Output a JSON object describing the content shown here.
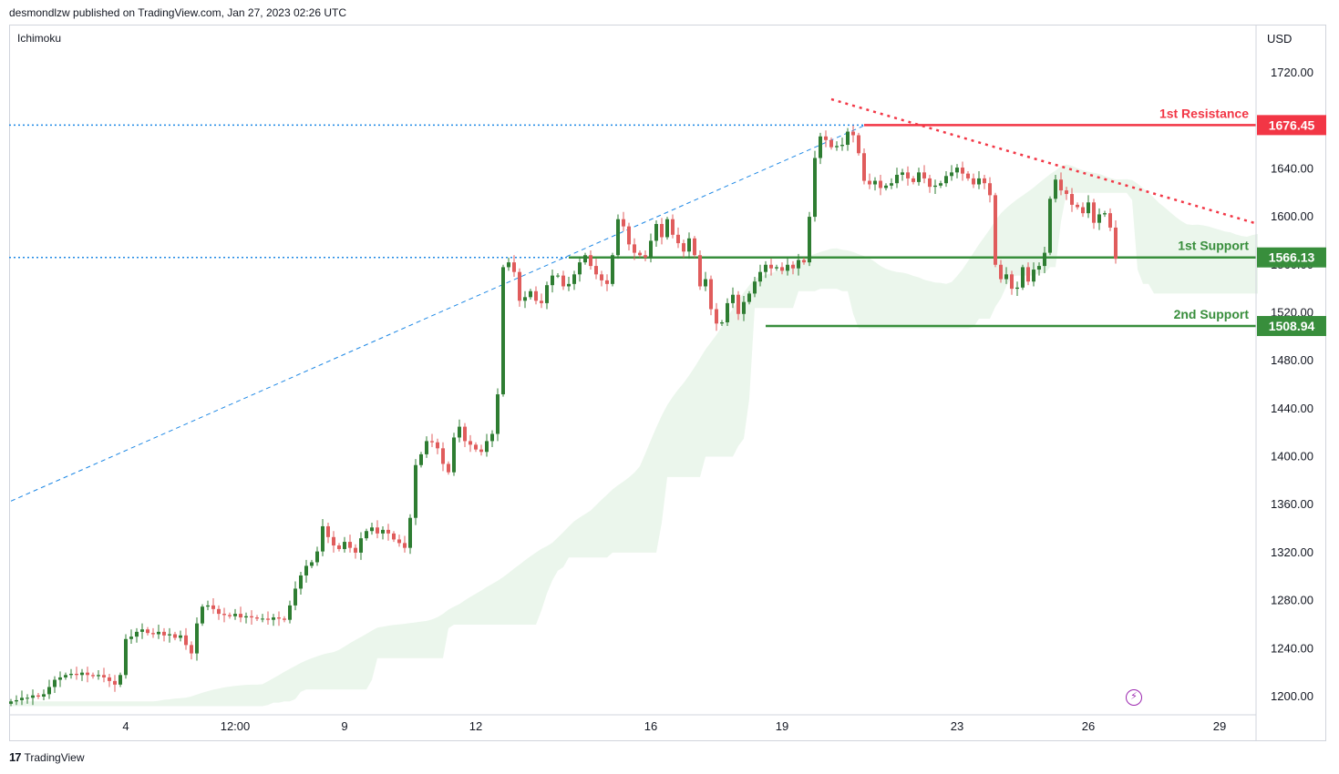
{
  "header": {
    "publisher_line": "desmondlzw published on TradingView.com, Jan 27, 2023 02:26 UTC"
  },
  "indicator_label": "Ichimoku",
  "currency": "USD",
  "footer": {
    "brand": "TradingView",
    "logo_text": "17"
  },
  "colors": {
    "bull": "#2e7d32",
    "bear": "#e05c5c",
    "resistance": "#f23645",
    "support": "#388e3c",
    "trend": "#1e88e5",
    "cloud_bull": "#e8f5e9",
    "cloud_bear": "#ffebee"
  },
  "chart_data": {
    "type": "candlestick",
    "title": "",
    "y_axis": {
      "ticks": [
        1200,
        1240,
        1280,
        1320,
        1360,
        1400,
        1440,
        1480,
        1520,
        1560,
        1600,
        1640,
        1680,
        1720
      ],
      "ylim": [
        1192,
        1735
      ],
      "position": "right"
    },
    "x_axis": {
      "tick_labels": [
        "4",
        "12:00",
        "9",
        "12",
        "16",
        "19",
        "23",
        "26",
        "29"
      ],
      "tick_index": [
        21,
        41,
        61,
        85,
        117,
        141,
        173,
        197,
        221
      ]
    },
    "levels": [
      {
        "name": "1st Resistance",
        "value": 1676.45,
        "color": "#f23645"
      },
      {
        "name": "1st Support",
        "value": 1566.13,
        "color": "#388e3c"
      },
      {
        "name": "2nd Support",
        "value": 1508.94,
        "color": "#388e3c"
      }
    ],
    "trendline_down": {
      "from": [
        150,
        1698
      ],
      "to": [
        228,
        1594
      ]
    },
    "trendline_up": {
      "from": [
        0,
        1363
      ],
      "to": [
        156,
        1676
      ]
    },
    "closes": [
      1196,
      1197,
      1199,
      1199,
      1201,
      1200,
      1202,
      1208,
      1214,
      1216,
      1218,
      1219,
      1218,
      1220,
      1218,
      1217,
      1218,
      1216,
      1213,
      1210,
      1218,
      1248,
      1250,
      1254,
      1256,
      1253,
      1252,
      1254,
      1251,
      1252,
      1249,
      1251,
      1243,
      1236,
      1261,
      1275,
      1276,
      1273,
      1269,
      1268,
      1267,
      1269,
      1266,
      1267,
      1266,
      1265,
      1265,
      1264,
      1266,
      1265,
      1264,
      1276,
      1290,
      1301,
      1309,
      1312,
      1321,
      1342,
      1333,
      1326,
      1323,
      1329,
      1324,
      1320,
      1332,
      1338,
      1341,
      1336,
      1339,
      1336,
      1331,
      1328,
      1324,
      1349,
      1393,
      1402,
      1413,
      1412,
      1407,
      1394,
      1387,
      1416,
      1425,
      1413,
      1410,
      1406,
      1404,
      1413,
      1419,
      1452,
      1558,
      1562,
      1554,
      1530,
      1533,
      1538,
      1530,
      1528,
      1543,
      1551,
      1551,
      1542,
      1544,
      1552,
      1562,
      1568,
      1559,
      1552,
      1547,
      1544,
      1568,
      1598,
      1592,
      1577,
      1570,
      1568,
      1566,
      1580,
      1594,
      1583,
      1598,
      1585,
      1578,
      1571,
      1582,
      1568,
      1542,
      1548,
      1523,
      1511,
      1512,
      1528,
      1535,
      1519,
      1529,
      1536,
      1546,
      1554,
      1560,
      1557,
      1558,
      1555,
      1560,
      1557,
      1564,
      1562,
      1600,
      1649,
      1667,
      1664,
      1658,
      1659,
      1660,
      1671,
      1668,
      1653,
      1630,
      1627,
      1630,
      1624,
      1626,
      1628,
      1635,
      1637,
      1632,
      1629,
      1637,
      1632,
      1625,
      1626,
      1628,
      1634,
      1637,
      1641,
      1636,
      1632,
      1627,
      1632,
      1628,
      1618,
      1560,
      1548,
      1552,
      1540,
      1541,
      1558,
      1546,
      1556,
      1559,
      1570,
      1615,
      1631,
      1622,
      1619,
      1610,
      1608,
      1603,
      1612,
      1595,
      1602,
      1603,
      1591,
      1565
    ]
  }
}
